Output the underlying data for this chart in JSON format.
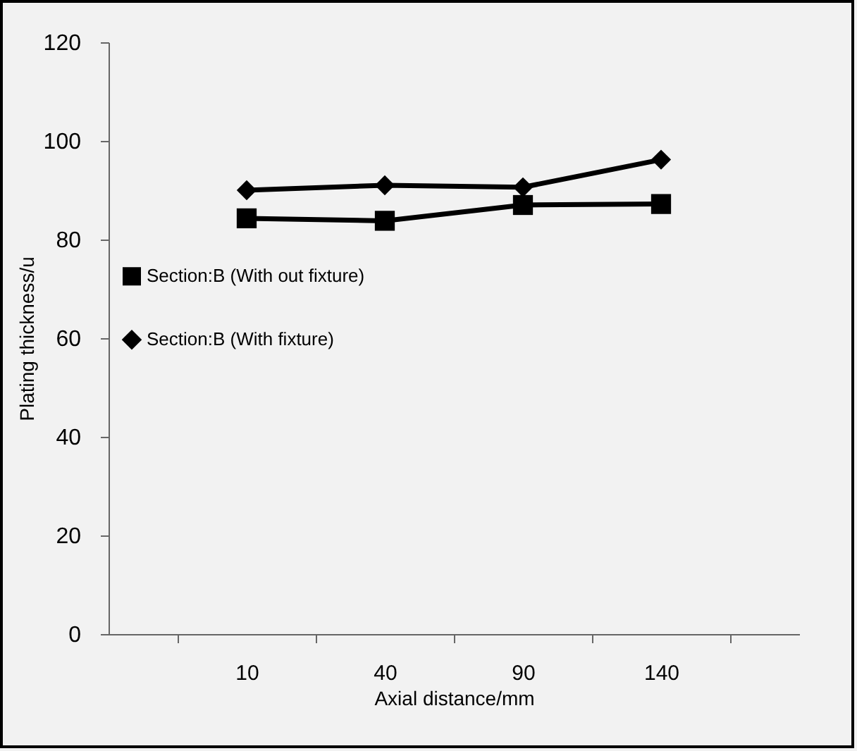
{
  "chart_data": {
    "type": "line",
    "xlabel": "Axial distance/mm",
    "ylabel": "Plating thickness/u",
    "categories": [
      "10",
      "40",
      "90",
      "140"
    ],
    "series": [
      {
        "name": "Section:B (With out fixture)",
        "color": "#000000",
        "marker": "square",
        "values": [
          84.3,
          83.8,
          87,
          87.2
        ]
      },
      {
        "name": "Section:B (With fixture)",
        "color": "#000000",
        "marker": "diamond",
        "values": [
          90,
          91,
          90.6,
          96.2
        ]
      }
    ],
    "ylim": [
      0,
      120
    ],
    "yticks": [
      0,
      20,
      40,
      60,
      80,
      100,
      120
    ],
    "grid": false,
    "legend": "left",
    "line_style": "solid"
  }
}
